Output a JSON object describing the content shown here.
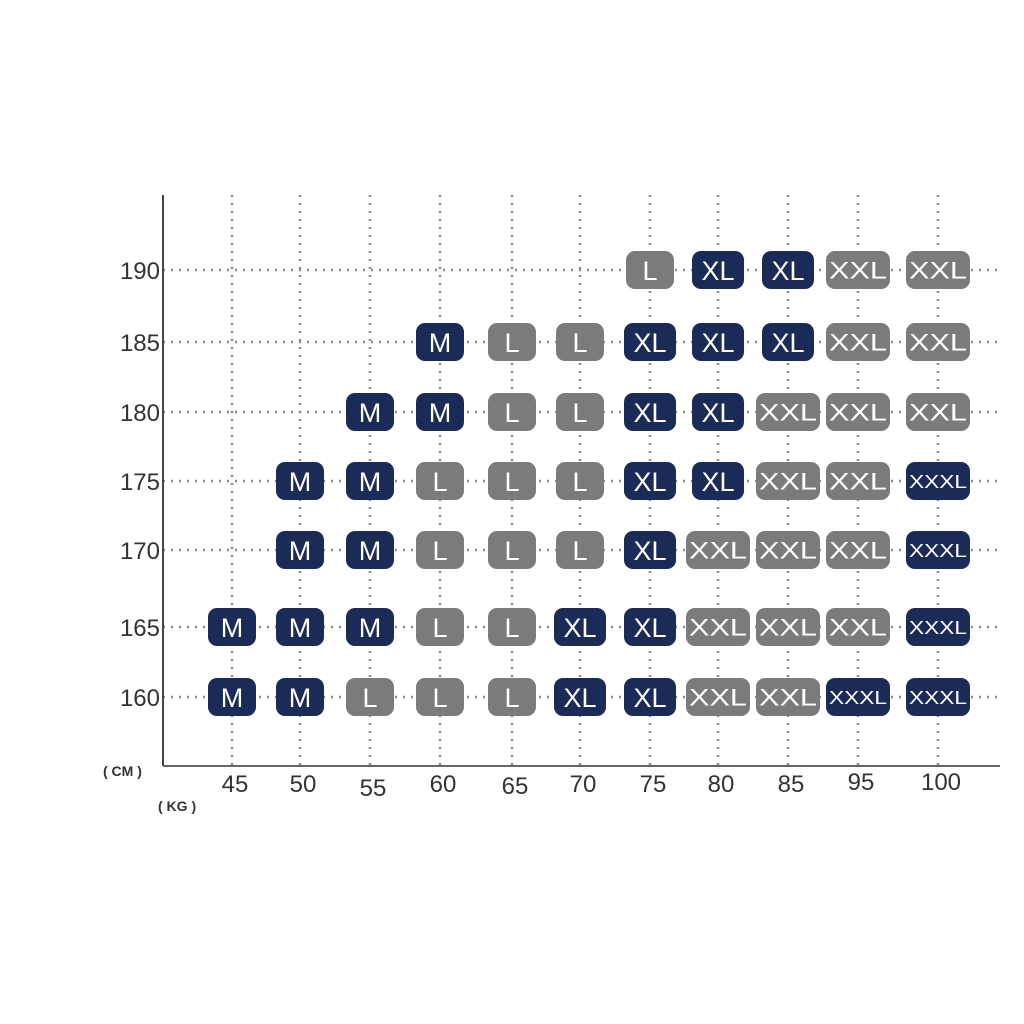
{
  "chart_data": {
    "type": "table",
    "xlabel": "( KG )",
    "ylabel": "( CM )",
    "x_categories": [
      "45",
      "50",
      "55",
      "60",
      "65",
      "70",
      "75",
      "80",
      "85",
      "95",
      "100"
    ],
    "y_categories": [
      "190",
      "185",
      "180",
      "175",
      "170",
      "165",
      "160"
    ],
    "grid": true,
    "size_colors": {
      "M": "#1b2b58",
      "L": "#7b7b7b",
      "XL": "#1b2b58",
      "XXL": "#7b7b7b",
      "XXXL": "#1b2b58"
    },
    "rows": [
      {
        "height": "190",
        "cells": {
          "75": "L",
          "80": "XL",
          "85": "XL",
          "95": "XXL",
          "100": "XXL"
        }
      },
      {
        "height": "185",
        "cells": {
          "60": "M",
          "65": "L",
          "70": "L",
          "75": "XL",
          "80": "XL",
          "85": "XL",
          "95": "XXL",
          "100": "XXL"
        }
      },
      {
        "height": "180",
        "cells": {
          "55": "M",
          "60": "M",
          "65": "L",
          "70": "L",
          "75": "XL",
          "80": "XL",
          "85": "XXL",
          "95": "XXL",
          "100": "XXL"
        }
      },
      {
        "height": "175",
        "cells": {
          "50": "M",
          "55": "M",
          "60": "L",
          "65": "L",
          "70": "L",
          "75": "XL",
          "80": "XL",
          "85": "XXL",
          "95": "XXL",
          "100": "XXXL"
        }
      },
      {
        "height": "170",
        "cells": {
          "50": "M",
          "55": "M",
          "60": "L",
          "65": "L",
          "70": "L",
          "75": "XL",
          "80": "XXL",
          "85": "XXL",
          "95": "XXL",
          "100": "XXXL"
        }
      },
      {
        "height": "165",
        "cells": {
          "45": "M",
          "50": "M",
          "55": "M",
          "60": "L",
          "65": "L",
          "70": "XL",
          "75": "XL",
          "80": "XXL",
          "85": "XXL",
          "95": "XXL",
          "100": "XXXL"
        }
      },
      {
        "height": "160",
        "cells": {
          "45": "M",
          "50": "M",
          "55": "L",
          "60": "L",
          "65": "L",
          "70": "XL",
          "75": "XL",
          "80": "XXL",
          "85": "XXL",
          "95": "XXXL",
          "100": "XXXL"
        }
      }
    ]
  }
}
